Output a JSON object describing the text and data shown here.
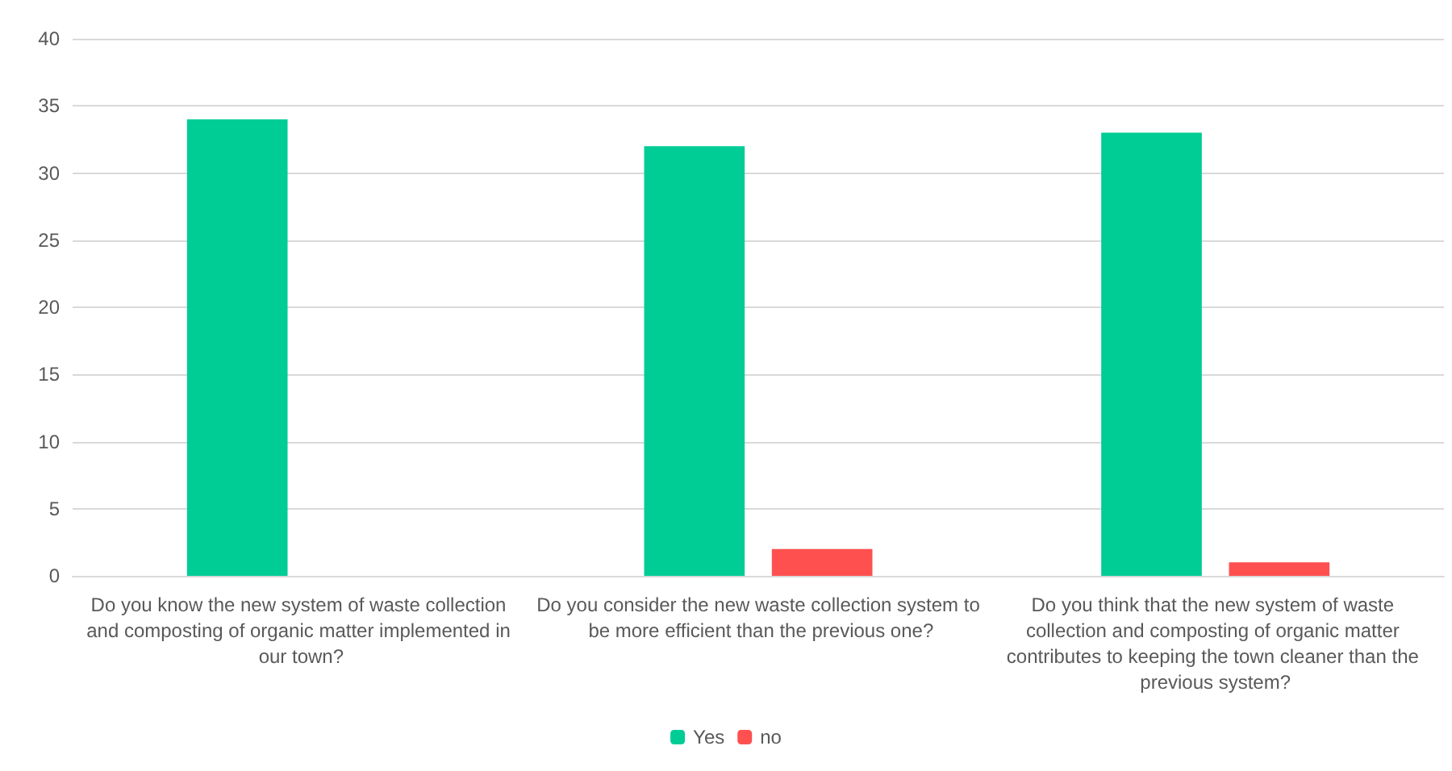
{
  "chart_data": {
    "type": "bar",
    "categories": [
      "Do you know the new system of waste collection and composting of organic matter implemented in our town?",
      "Do you consider the new waste collection system to be more efficient than the previous one?",
      "Do you think that the new system of waste collection and composting of organic matter contributes to keeping the town cleaner than the previous system?"
    ],
    "series": [
      {
        "name": "Yes",
        "color": "#00cc96",
        "values": [
          34,
          32,
          33
        ]
      },
      {
        "name": "no",
        "color": "#ff5050",
        "values": [
          0,
          2,
          1
        ]
      }
    ],
    "ylim": [
      0,
      40
    ],
    "yticks": [
      0,
      5,
      10,
      15,
      20,
      25,
      30,
      35,
      40
    ],
    "grid": "y",
    "legend": "bottom"
  }
}
